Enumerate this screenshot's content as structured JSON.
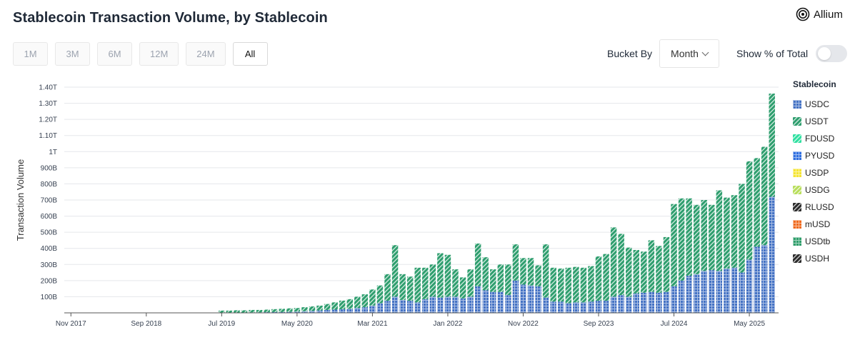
{
  "header": {
    "title": "Stablecoin Transaction Volume, by Stablecoin",
    "brand": "Allium"
  },
  "range_buttons": [
    {
      "label": "1M",
      "active": false
    },
    {
      "label": "3M",
      "active": false
    },
    {
      "label": "6M",
      "active": false
    },
    {
      "label": "12M",
      "active": false
    },
    {
      "label": "24M",
      "active": false
    },
    {
      "label": "All",
      "active": true
    }
  ],
  "controls": {
    "bucket_label": "Bucket By",
    "bucket_value": "Month",
    "percent_label": "Show % of Total",
    "percent_on": false
  },
  "icons": {
    "logo": "allium-logo-icon",
    "dropdown": "chevron-down-icon"
  },
  "colors": {
    "USDC": "#4472c4",
    "USDT": "#2e9e6e",
    "FDUSD": "#2ee0a0",
    "PYUSD": "#2f6fe0",
    "USDP": "#f5e532",
    "USDG": "#b8de5a",
    "RLUSD": "#2b2b2b",
    "mUSD": "#f06a1e",
    "USDtb": "#2f9e6b",
    "USDH": "#2b2b2b"
  },
  "chart_data": {
    "type": "bar",
    "stacked": true,
    "xlabel": "",
    "ylabel": "Transaction Volume",
    "ylim": [
      0,
      1.4
    ],
    "y_unit": "T",
    "y_ticks": [
      {
        "value": 0.1,
        "label": "100B"
      },
      {
        "value": 0.2,
        "label": "200B"
      },
      {
        "value": 0.3,
        "label": "300B"
      },
      {
        "value": 0.4,
        "label": "400B"
      },
      {
        "value": 0.5,
        "label": "500B"
      },
      {
        "value": 0.6,
        "label": "600B"
      },
      {
        "value": 0.7,
        "label": "700B"
      },
      {
        "value": 0.8,
        "label": "800B"
      },
      {
        "value": 0.9,
        "label": "900B"
      },
      {
        "value": 1.0,
        "label": "1T"
      },
      {
        "value": 1.1,
        "label": "1.10T"
      },
      {
        "value": 1.2,
        "label": "1.20T"
      },
      {
        "value": 1.3,
        "label": "1.30T"
      },
      {
        "value": 1.4,
        "label": "1.40T"
      }
    ],
    "x_ticks": [
      "Nov 2017",
      "Sep 2018",
      "Jul 2019",
      "May 2020",
      "Mar 2021",
      "Jan 2022",
      "Nov 2022",
      "Sep 2023",
      "Jul 2024",
      "May 2025"
    ],
    "x_start": "Nov 2017",
    "x_end": "Oct 2025",
    "grid": true,
    "legend_title": "Stablecoin",
    "legend_position": "right",
    "legend": [
      "USDC",
      "USDT",
      "FDUSD",
      "PYUSD",
      "USDP",
      "USDG",
      "RLUSD",
      "mUSD",
      "USDtb",
      "USDH"
    ],
    "series": [
      {
        "name": "USDC",
        "values": [
          0,
          0,
          0,
          0,
          0,
          0,
          0,
          0,
          0,
          0,
          0,
          0,
          0,
          0,
          0,
          0,
          0,
          0,
          0,
          0,
          0.001,
          0.001,
          0.002,
          0.002,
          0.003,
          0.003,
          0.004,
          0.005,
          0.005,
          0.006,
          0.008,
          0.01,
          0.012,
          0.015,
          0.018,
          0.02,
          0.022,
          0.025,
          0.03,
          0.035,
          0.045,
          0.06,
          0.075,
          0.1,
          0.08,
          0.075,
          0.065,
          0.085,
          0.1,
          0.095,
          0.1,
          0.1,
          0.09,
          0.1,
          0.165,
          0.14,
          0.13,
          0.13,
          0.11,
          0.2,
          0.175,
          0.17,
          0.165,
          0.095,
          0.07,
          0.07,
          0.06,
          0.065,
          0.065,
          0.07,
          0.075,
          0.075,
          0.1,
          0.11,
          0.1,
          0.12,
          0.125,
          0.13,
          0.125,
          0.13,
          0.165,
          0.2,
          0.23,
          0.24,
          0.26,
          0.265,
          0.26,
          0.275,
          0.28,
          0.25,
          0.33,
          0.41,
          0.42,
          0.72
        ]
      },
      {
        "name": "USDT",
        "values": [
          0,
          0,
          0,
          0,
          0,
          0,
          0,
          0,
          0,
          0,
          0,
          0,
          0,
          0,
          0,
          0,
          0,
          0,
          0,
          0,
          0.013,
          0.013,
          0.014,
          0.014,
          0.015,
          0.015,
          0.016,
          0.018,
          0.02,
          0.022,
          0.022,
          0.025,
          0.028,
          0.03,
          0.037,
          0.045,
          0.054,
          0.06,
          0.07,
          0.08,
          0.1,
          0.11,
          0.165,
          0.32,
          0.16,
          0.15,
          0.215,
          0.195,
          0.2,
          0.275,
          0.26,
          0.17,
          0.13,
          0.17,
          0.265,
          0.205,
          0.14,
          0.17,
          0.19,
          0.225,
          0.165,
          0.17,
          0.13,
          0.33,
          0.21,
          0.205,
          0.22,
          0.22,
          0.215,
          0.22,
          0.275,
          0.29,
          0.43,
          0.38,
          0.305,
          0.27,
          0.255,
          0.32,
          0.29,
          0.34,
          0.51,
          0.51,
          0.48,
          0.43,
          0.44,
          0.405,
          0.5,
          0.44,
          0.45,
          0.55,
          0.61,
          0.55,
          0.61,
          0.64
        ]
      }
    ]
  }
}
